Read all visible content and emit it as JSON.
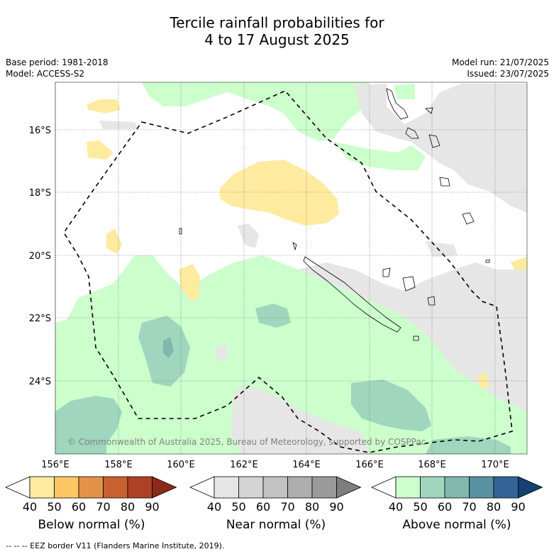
{
  "title": {
    "line1": "Tercile rainfall probabilities for",
    "line2": "4 to 17 August 2025"
  },
  "info": {
    "base_period": "Base period: 1981-2018",
    "model": "Model: ACCESS-S2",
    "model_run": "Model run: 21/07/2025",
    "issued": "Issued: 23/07/2025"
  },
  "map": {
    "lat_labels": [
      "16°S",
      "18°S",
      "20°S",
      "22°S",
      "24°S"
    ],
    "lon_labels": [
      "156°E",
      "158°E",
      "160°E",
      "162°E",
      "164°E",
      "166°E",
      "168°E",
      "170°E"
    ],
    "copyright": "© Commonwealth of Australia 2025, Bureau of Meteorology, supported by COSPPac"
  },
  "colorbars": [
    {
      "title": "Below normal (%)",
      "ticks": [
        "40",
        "50",
        "60",
        "70",
        "80",
        "90"
      ],
      "colors": [
        "#ffffff",
        "#feeb9f",
        "#fdc864",
        "#e29349",
        "#c9602f",
        "#ad4126",
        "#8c2a19"
      ]
    },
    {
      "title": "Near normal (%)",
      "ticks": [
        "40",
        "50",
        "60",
        "70",
        "80",
        "90"
      ],
      "colors": [
        "#ffffff",
        "#e6e6e6",
        "#d4d4d4",
        "#c2c2c2",
        "#aeaeae",
        "#9a9a9a",
        "#7e7e7e"
      ]
    },
    {
      "title": "Above normal (%)",
      "ticks": [
        "40",
        "50",
        "60",
        "70",
        "80",
        "90"
      ],
      "colors": [
        "#ffffff",
        "#ccffcc",
        "#9fd6bd",
        "#80b8ae",
        "#5a91a1",
        "#346497",
        "#15406f"
      ]
    }
  ],
  "eez_note": "-- -- -- EEZ border V11 (Flanders Marine Institute, 2019)."
}
